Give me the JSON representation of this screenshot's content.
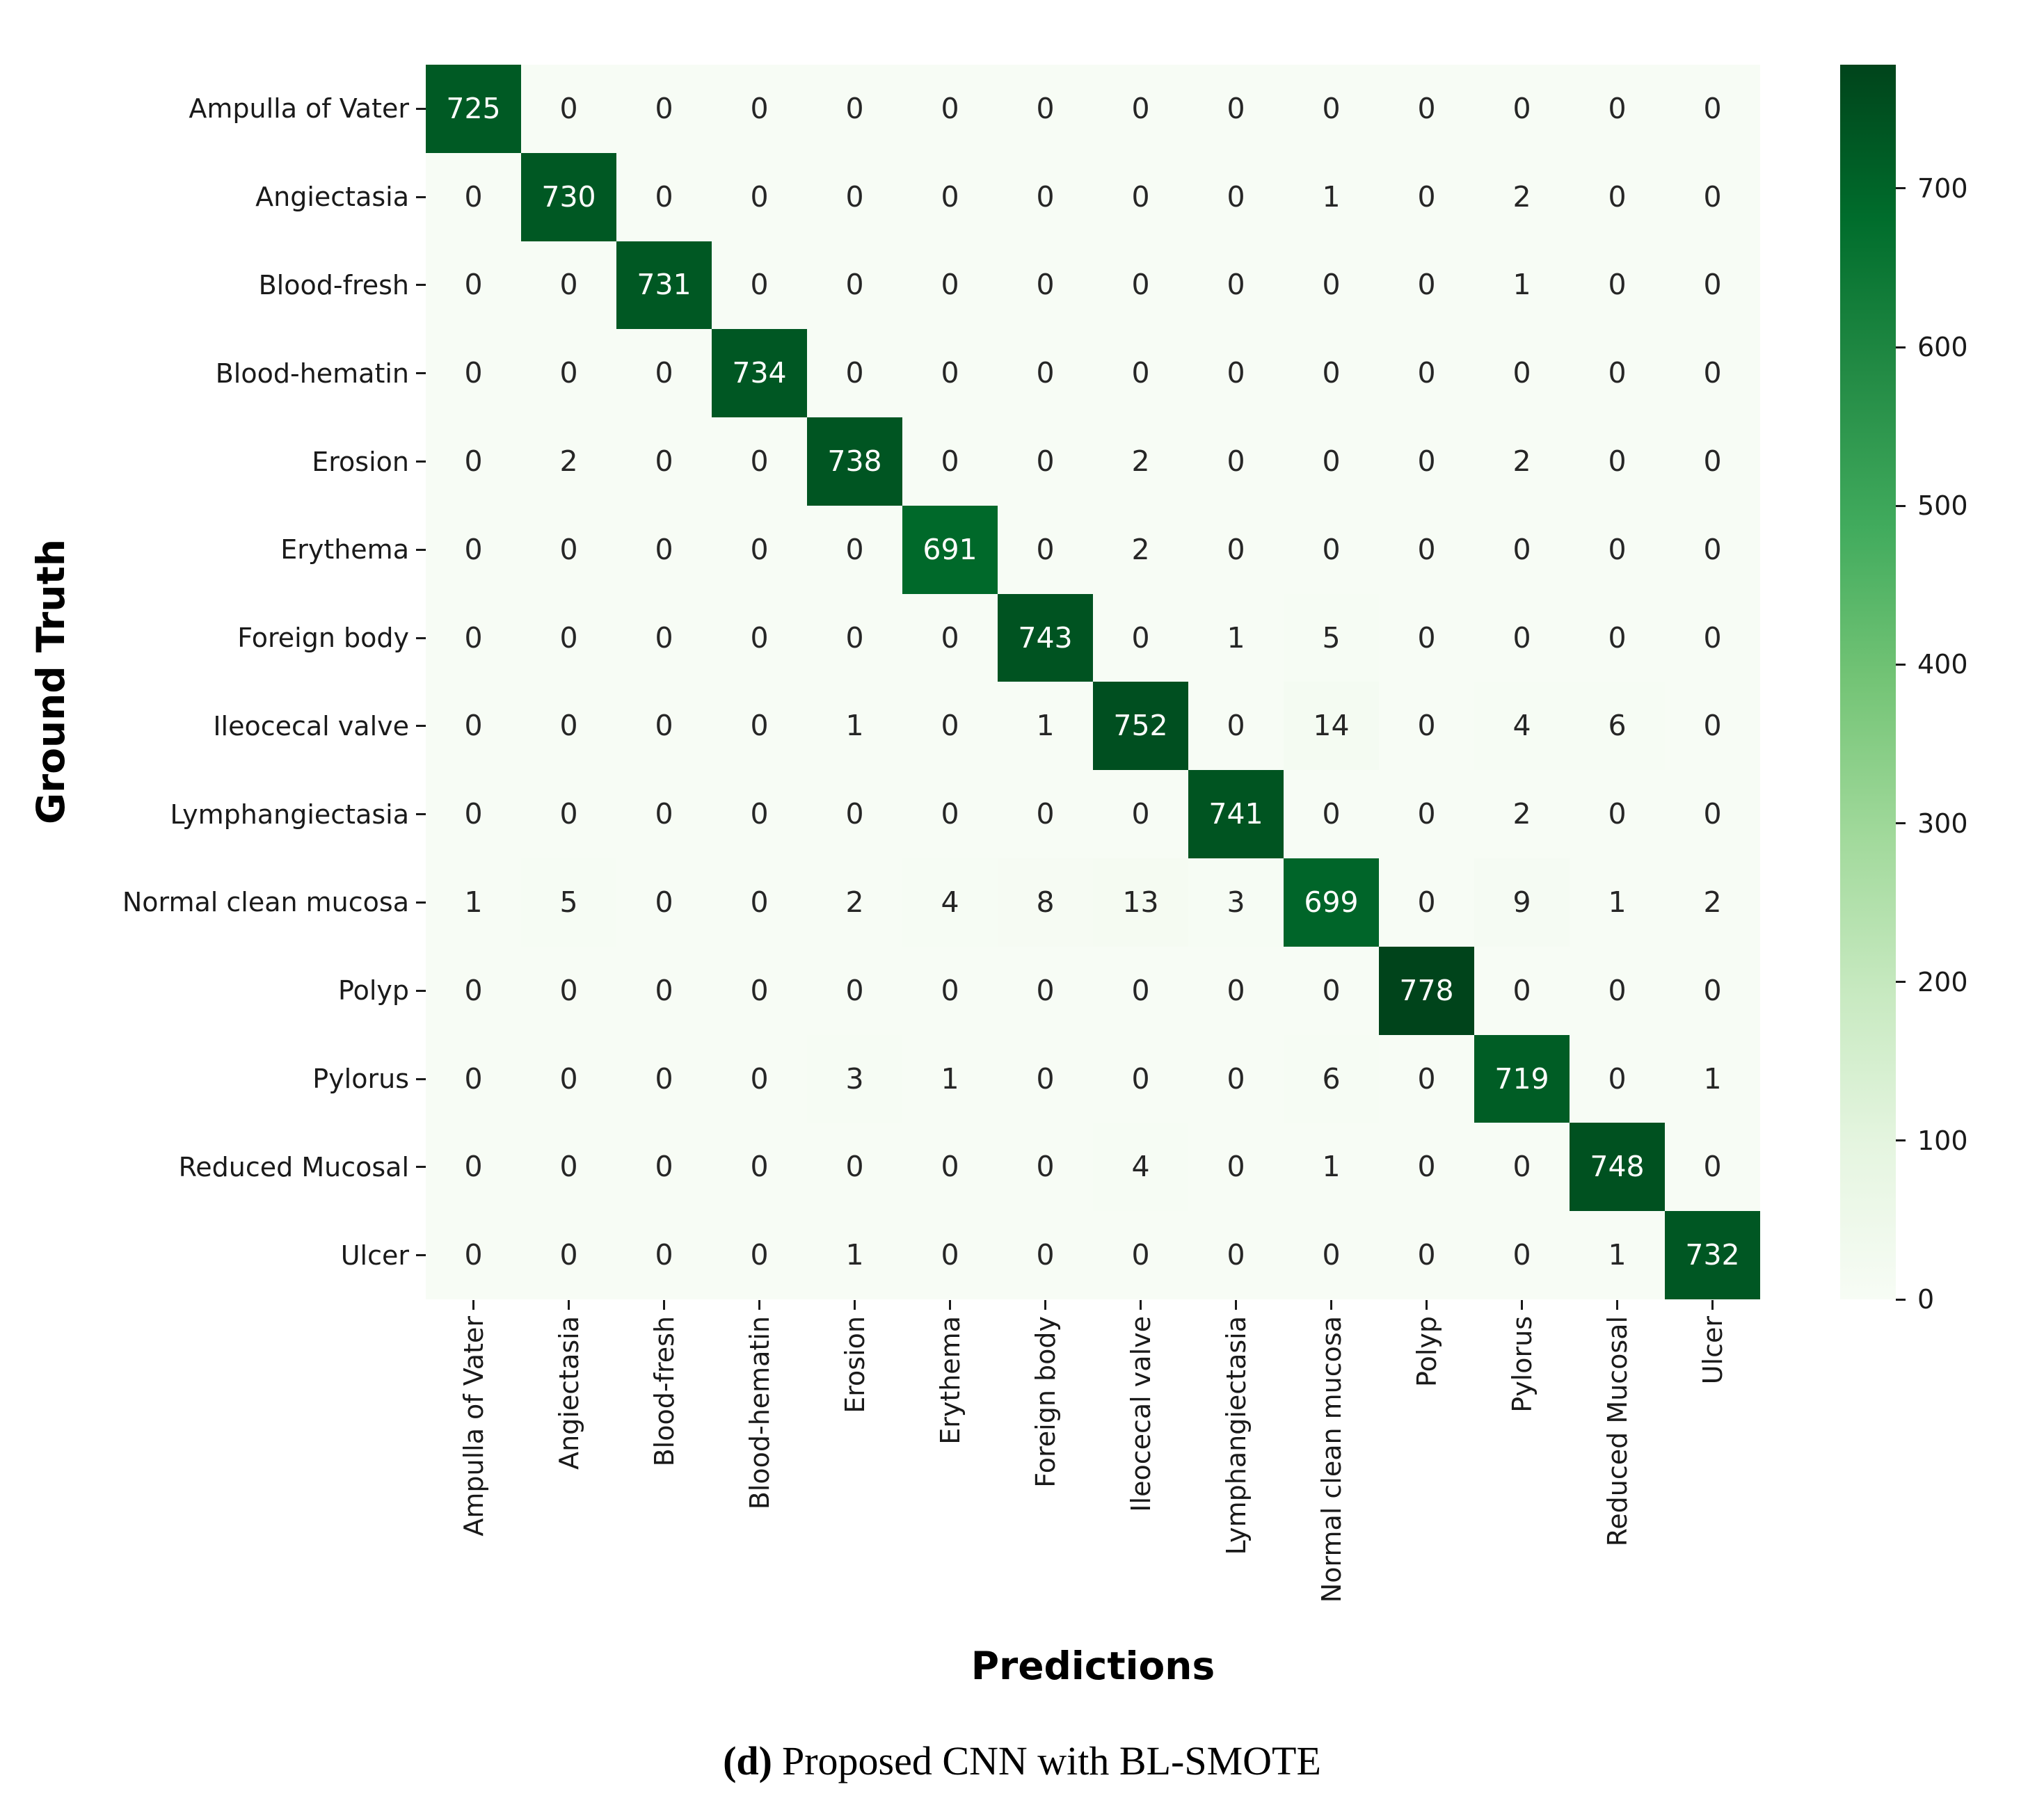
{
  "caption": {
    "label": "(d)",
    "text": "Proposed CNN with BL-SMOTE"
  },
  "chart_data": {
    "type": "heatmap",
    "xlabel": "Predictions",
    "ylabel": "Ground Truth",
    "categories": [
      "Ampulla of Vater",
      "Angiectasia",
      "Blood-fresh",
      "Blood-hematin",
      "Erosion",
      "Erythema",
      "Foreign body",
      "Ileocecal valve",
      "Lymphangiectasia",
      "Normal clean mucosa",
      "Polyp",
      "Pylorus",
      "Reduced Mucosal",
      "Ulcer"
    ],
    "matrix": [
      [
        725,
        0,
        0,
        0,
        0,
        0,
        0,
        0,
        0,
        0,
        0,
        0,
        0,
        0
      ],
      [
        0,
        730,
        0,
        0,
        0,
        0,
        0,
        0,
        0,
        1,
        0,
        2,
        0,
        0
      ],
      [
        0,
        0,
        731,
        0,
        0,
        0,
        0,
        0,
        0,
        0,
        0,
        1,
        0,
        0
      ],
      [
        0,
        0,
        0,
        734,
        0,
        0,
        0,
        0,
        0,
        0,
        0,
        0,
        0,
        0
      ],
      [
        0,
        2,
        0,
        0,
        738,
        0,
        0,
        2,
        0,
        0,
        0,
        2,
        0,
        0
      ],
      [
        0,
        0,
        0,
        0,
        0,
        691,
        0,
        2,
        0,
        0,
        0,
        0,
        0,
        0
      ],
      [
        0,
        0,
        0,
        0,
        0,
        0,
        743,
        0,
        1,
        5,
        0,
        0,
        0,
        0
      ],
      [
        0,
        0,
        0,
        0,
        1,
        0,
        1,
        752,
        0,
        14,
        0,
        4,
        6,
        0
      ],
      [
        0,
        0,
        0,
        0,
        0,
        0,
        0,
        0,
        741,
        0,
        0,
        2,
        0,
        0
      ],
      [
        1,
        5,
        0,
        0,
        2,
        4,
        8,
        13,
        3,
        699,
        0,
        9,
        1,
        2
      ],
      [
        0,
        0,
        0,
        0,
        0,
        0,
        0,
        0,
        0,
        0,
        778,
        0,
        0,
        0
      ],
      [
        0,
        0,
        0,
        0,
        3,
        1,
        0,
        0,
        0,
        6,
        0,
        719,
        0,
        1
      ],
      [
        0,
        0,
        0,
        0,
        0,
        0,
        0,
        4,
        0,
        1,
        0,
        0,
        748,
        0
      ],
      [
        0,
        0,
        0,
        0,
        1,
        0,
        0,
        0,
        0,
        0,
        0,
        0,
        1,
        732
      ]
    ],
    "colorbar": {
      "min": 0,
      "max": 778,
      "ticks": [
        0,
        100,
        200,
        300,
        400,
        500,
        600,
        700
      ],
      "colormap": "Greens"
    },
    "colors": {
      "cmap_low": "#f7fcf5",
      "cmap_high": "#00441b",
      "annot_dark": "#262626",
      "annot_light": "#ffffff"
    },
    "layout": {
      "legend_position": "right-colorbar",
      "grid": false
    }
  }
}
